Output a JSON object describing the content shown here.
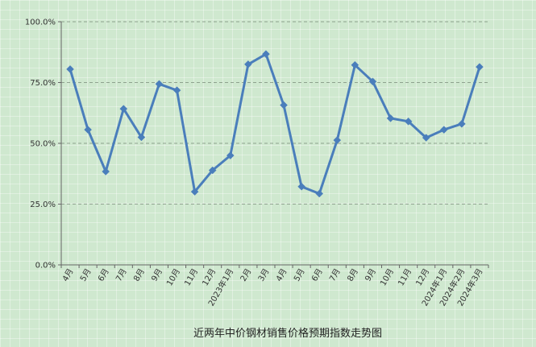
{
  "chart_data": {
    "type": "line",
    "title": "近两年中价钢材销售价格预期指数走势图",
    "xlabel": "",
    "ylabel": "",
    "categories": [
      "4月",
      "5月",
      "6月",
      "7月",
      "8月",
      "9月",
      "10月",
      "11月",
      "12月",
      "2023年1月",
      "2月",
      "3月",
      "4月",
      "5月",
      "6月",
      "7月",
      "8月",
      "9月",
      "10月",
      "11月",
      "12月",
      "2024年1月",
      "2024年2月",
      "2024年3月"
    ],
    "series": [
      {
        "values": [
          80.5,
          55.6,
          38.4,
          64.2,
          52.5,
          74.4,
          71.8,
          30.1,
          38.9,
          45.0,
          82.5,
          86.7,
          65.7,
          32.2,
          29.3,
          51.3,
          82.2,
          75.4,
          60.3,
          59.0,
          52.3,
          55.6,
          58.0,
          81.4
        ]
      }
    ],
    "ylim": [
      0,
      100
    ],
    "yticks": [
      "0.0%",
      "25.0%",
      "50.0%",
      "75.0%",
      "100.0%"
    ],
    "grid": true,
    "line_color": "#4a7ebb"
  }
}
